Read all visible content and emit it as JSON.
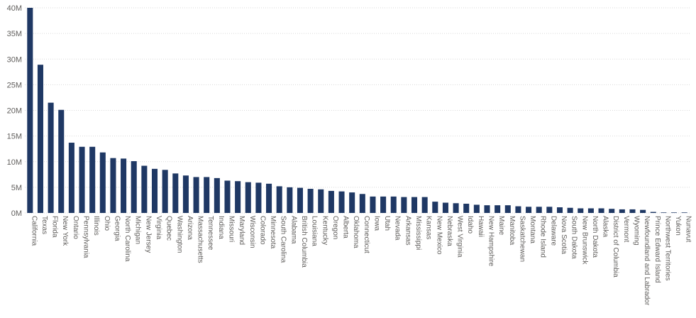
{
  "chart_data": {
    "type": "bar",
    "bar_color": "#1f3864",
    "ylim": [
      0,
      40000000
    ],
    "grid": true,
    "y_ticks": [
      {
        "value": 0,
        "label": "0M"
      },
      {
        "value": 5000000,
        "label": "5M"
      },
      {
        "value": 10000000,
        "label": "10M"
      },
      {
        "value": 15000000,
        "label": "15M"
      },
      {
        "value": 20000000,
        "label": "20M"
      },
      {
        "value": 25000000,
        "label": "25M"
      },
      {
        "value": 30000000,
        "label": "30M"
      },
      {
        "value": 35000000,
        "label": "35M"
      },
      {
        "value": 40000000,
        "label": "40M"
      }
    ],
    "categories": [
      "California",
      "Texas",
      "Florida",
      "New York",
      "Ontario",
      "Pennsylvania",
      "Illinois",
      "Ohio",
      "Georgia",
      "North Carolina",
      "Michigan",
      "New Jersey",
      "Virginia",
      "Quebec",
      "Washington",
      "Arizona",
      "Massachusetts",
      "Tennessee",
      "Indiana",
      "Missouri",
      "Maryland",
      "Wisconsin",
      "Colorado",
      "Minnesota",
      "South Carolina",
      "Alabama",
      "British Columbia",
      "Louisiana",
      "Kentucky",
      "Oregon",
      "Alberta",
      "Oklahoma",
      "Connecticut",
      "Iowa",
      "Utah",
      "Nevada",
      "Arkansas",
      "Mississippi",
      "Kansas",
      "New Mexico",
      "Nebraska",
      "West Virginia",
      "Idaho",
      "Hawaii",
      "New Hampshire",
      "Maine",
      "Manitoba",
      "Saskatchewan",
      "Montana",
      "Rhode Island",
      "Delaware",
      "Nova Scotia",
      "South Dakota",
      "New Brunswick",
      "North Dakota",
      "Alaska",
      "District of Columbia",
      "Vermont",
      "Wyoming",
      "Newfoundland and Labrador",
      "Prince Edward Island",
      "Northwest Territories",
      "Yukon",
      "Nunavut"
    ],
    "values": [
      40000000,
      28900000,
      21500000,
      20100000,
      13700000,
      12900000,
      12900000,
      11800000,
      10700000,
      10600000,
      10100000,
      9200000,
      8600000,
      8400000,
      7700000,
      7300000,
      7000000,
      7000000,
      6800000,
      6300000,
      6200000,
      6000000,
      5900000,
      5700000,
      5200000,
      5000000,
      4900000,
      4700000,
      4600000,
      4300000,
      4200000,
      4000000,
      3700000,
      3200000,
      3200000,
      3200000,
      3100000,
      3100000,
      3100000,
      2200000,
      2000000,
      1900000,
      1800000,
      1600000,
      1500000,
      1500000,
      1500000,
      1300000,
      1200000,
      1200000,
      1200000,
      1100000,
      1000000,
      900000,
      900000,
      900000,
      800000,
      700000,
      700000,
      600000,
      200000,
      100000,
      100000,
      100000
    ]
  }
}
